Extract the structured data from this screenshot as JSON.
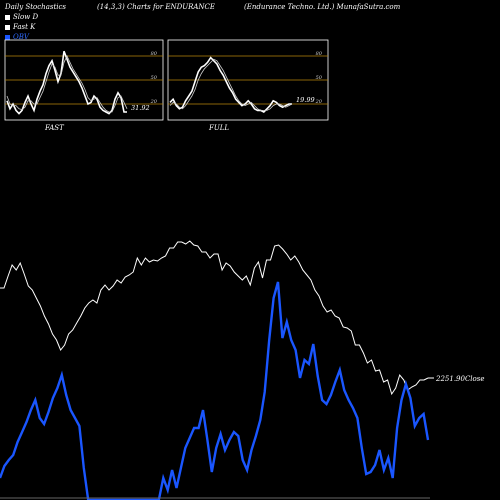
{
  "header": {
    "left": "Daily Stochastics",
    "center": "(14,3,3) Charts for ENDURANCE",
    "right": "(Endurance Techno. Ltd.) MunafaSutra.com"
  },
  "legend": [
    {
      "label": "Slow D",
      "color": "#ffffff"
    },
    {
      "label": "Fast K",
      "color": "#ffffff"
    },
    {
      "label": "OBV",
      "color": "#1a56ff"
    }
  ],
  "chart_data": [
    {
      "type": "line",
      "panel": "FAST",
      "ylim": [
        0,
        100
      ],
      "yticks": [
        80,
        50,
        20
      ],
      "last_value_label": "31.92",
      "series": [
        {
          "values": [
            24,
            14,
            20,
            12,
            8,
            12,
            22,
            30,
            20,
            12,
            26,
            36,
            44,
            58,
            68,
            74,
            62,
            48,
            58,
            86,
            76,
            66,
            60,
            54,
            48,
            40,
            30,
            20,
            22,
            30,
            26,
            16,
            12,
            10,
            8,
            12,
            26,
            34,
            28,
            10,
            10
          ]
        },
        {
          "values": [
            30,
            20,
            18,
            18,
            14,
            13,
            16,
            24,
            24,
            20,
            20,
            28,
            36,
            48,
            60,
            70,
            66,
            56,
            56,
            72,
            80,
            72,
            64,
            58,
            52,
            46,
            38,
            28,
            24,
            26,
            28,
            22,
            16,
            12,
            10,
            10,
            18,
            28,
            30,
            22,
            14
          ]
        }
      ]
    },
    {
      "type": "line",
      "panel": "FULL",
      "ylim": [
        0,
        100
      ],
      "yticks": [
        80,
        50,
        20
      ],
      "last_value_label": "19.99",
      "series": [
        {
          "values": [
            22,
            26,
            18,
            14,
            16,
            24,
            30,
            36,
            48,
            60,
            66,
            68,
            72,
            78,
            74,
            70,
            62,
            56,
            48,
            40,
            34,
            26,
            22,
            18,
            20,
            24,
            20,
            14,
            12,
            12,
            10,
            14,
            18,
            24,
            22,
            18,
            16,
            18,
            20,
            20
          ]
        },
        {
          "values": [
            18,
            22,
            20,
            16,
            14,
            18,
            24,
            30,
            38,
            50,
            58,
            64,
            68,
            72,
            76,
            74,
            68,
            62,
            54,
            46,
            38,
            30,
            24,
            20,
            18,
            20,
            22,
            18,
            14,
            12,
            12,
            12,
            14,
            18,
            20,
            20,
            18,
            16,
            18,
            20
          ]
        }
      ]
    },
    {
      "type": "line",
      "panel": "price-obv",
      "last_value_label": "2251.90Close",
      "series": [
        {
          "name": "Close",
          "values": [
            288,
            288,
            276,
            265,
            270,
            263,
            274,
            286,
            290,
            298,
            306,
            316,
            324,
            334,
            340,
            350,
            345,
            334,
            330,
            323,
            316,
            308,
            303,
            300,
            303,
            290,
            285,
            290,
            286,
            280,
            283,
            277,
            275,
            272,
            258,
            265,
            258,
            262,
            260,
            261,
            258,
            256,
            248,
            248,
            242,
            242,
            244,
            241,
            245,
            246,
            252,
            252,
            258,
            254,
            254,
            270,
            263,
            266,
            272,
            276,
            280,
            276,
            285,
            268,
            262,
            278,
            260,
            260,
            246,
            245,
            249,
            254,
            260,
            256,
            262,
            270,
            275,
            280,
            290,
            296,
            306,
            312,
            310,
            316,
            318,
            327,
            328,
            331,
            345,
            345,
            353,
            363,
            360,
            371,
            370,
            382,
            380,
            394,
            388,
            375,
            380,
            390,
            387,
            385,
            380,
            380,
            378
          ]
        },
        {
          "name": "OBV",
          "values": [
            478,
            466,
            460,
            455,
            442,
            432,
            422,
            410,
            400,
            418,
            424,
            412,
            398,
            388,
            375,
            395,
            410,
            418,
            426,
            468,
            500,
            500,
            500,
            500,
            500,
            500,
            500,
            500,
            500,
            500,
            500,
            500,
            500,
            500,
            500,
            500,
            500,
            478,
            490,
            470,
            488,
            468,
            448,
            438,
            428,
            428,
            410,
            440,
            472,
            448,
            434,
            450,
            440,
            432,
            436,
            460,
            470,
            450,
            436,
            420,
            392,
            340,
            298,
            282,
            338,
            322,
            340,
            350,
            378,
            360,
            364,
            344,
            376,
            400,
            404,
            395,
            382,
            370,
            390,
            400,
            408,
            418,
            448,
            474,
            472,
            465,
            450,
            470,
            458,
            478,
            428,
            400,
            384,
            398,
            426,
            418,
            414,
            440
          ]
        }
      ]
    }
  ]
}
